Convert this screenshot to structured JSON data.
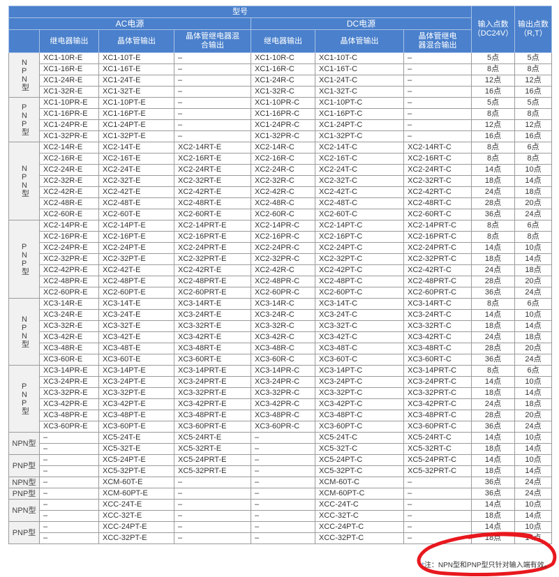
{
  "header": {
    "model": "型号",
    "ac_power": "AC电源",
    "dc_power": "DC电源",
    "input_points": "输入点数（DC24V）",
    "output_points": "输出点数（R,T）",
    "columns": [
      "继电器输出",
      "晶体管输出",
      "晶体管继电器混合输出",
      "继电器输出",
      "晶体管输出",
      "晶体管继电器混合输出"
    ]
  },
  "groups": [
    {
      "label": "NPN型",
      "vertical": true,
      "rows": [
        [
          "XC1-10R-E",
          "XC1-10T-E",
          "–",
          "XC1-10R-C",
          "XC1-10T-C",
          "–",
          "5点",
          "5点"
        ],
        [
          "XC1-16R-E",
          "XC1-16T-E",
          "–",
          "XC1-16R-C",
          "XC1-16T-C",
          "–",
          "8点",
          "8点"
        ],
        [
          "XC1-24R-E",
          "XC1-24T-E",
          "–",
          "XC1-24R-C",
          "XC1-24T-C",
          "–",
          "12点",
          "12点"
        ],
        [
          "XC1-32R-E",
          "XC1-32T-E",
          "–",
          "XC1-32R-C",
          "XC1-32T-C",
          "–",
          "16点",
          "16点"
        ]
      ]
    },
    {
      "label": "PNP型",
      "vertical": true,
      "rows": [
        [
          "XC1-10PR-E",
          "XC1-10PT-E",
          "–",
          "XC1-10PR-C",
          "XC1-10PT-C",
          "–",
          "5点",
          "5点"
        ],
        [
          "XC1-16PR-E",
          "XC1-16PT-E",
          "–",
          "XC1-16PR-C",
          "XC1-16PT-C",
          "–",
          "8点",
          "8点"
        ],
        [
          "XC1-24PR-E",
          "XC1-24PT-E",
          "–",
          "XC1-24PR-C",
          "XC1-24PT-C",
          "–",
          "12点",
          "12点"
        ],
        [
          "XC1-32PR-E",
          "XC1-32PT-E",
          "–",
          "XC1-32PR-C",
          "XC1-32PT-C",
          "–",
          "16点",
          "16点"
        ]
      ]
    },
    {
      "label": "NPN型",
      "vertical": true,
      "rows": [
        [
          "XC2-14R-E",
          "XC2-14T-E",
          "XC2-14RT-E",
          "XC2-14R-C",
          "XC2-14T-C",
          "XC2-14RT-C",
          "8点",
          "6点"
        ],
        [
          "XC2-16R-E",
          "XC2-16T-E",
          "XC2-16RT-E",
          "XC2-16R-C",
          "XC2-16T-C",
          "XC2-16RT-C",
          "8点",
          "8点"
        ],
        [
          "XC2-24R-E",
          "XC2-24T-E",
          "XC2-24RT-E",
          "XC2-24R-C",
          "XC2-24T-C",
          "XC2-24RT-C",
          "14点",
          "10点"
        ],
        [
          "XC2-32R-E",
          "XC2-32T-E",
          "XC2-32RT-E",
          "XC2-32R-C",
          "XC2-32T-C",
          "XC2-32RT-C",
          "18点",
          "14点"
        ],
        [
          "XC2-42R-E",
          "XC2-42T-E",
          "XC2-42RT-E",
          "XC2-42R-C",
          "XC2-42T-C",
          "XC2-42RT-C",
          "24点",
          "18点"
        ],
        [
          "XC2-48R-E",
          "XC2-48T-E",
          "XC2-48RT-E",
          "XC2-48R-C",
          "XC2-48T-C",
          "XC2-48RT-C",
          "28点",
          "20点"
        ],
        [
          "XC2-60R-E",
          "XC2-60T-E",
          "XC2-60RT-E",
          "XC2-60R-C",
          "XC2-60T-C",
          "XC2-60RT-C",
          "36点",
          "24点"
        ]
      ]
    },
    {
      "label": "PNP型",
      "vertical": true,
      "rows": [
        [
          "XC2-14PR-E",
          "XC2-14PT-E",
          "XC2-14PRT-E",
          "XC2-14PR-C",
          "XC2-14PT-C",
          "XC2-14PRT-C",
          "8点",
          "6点"
        ],
        [
          "XC2-16PR-E",
          "XC2-16PT-E",
          "XC2-16PRT-E",
          "XC2-16PR-C",
          "XC2-16PT-C",
          "XC2-16PRT-C",
          "8点",
          "8点"
        ],
        [
          "XC2-24PR-E",
          "XC2-24PT-E",
          "XC2-24PRT-E",
          "XC2-24PR-C",
          "XC2-24PT-C",
          "XC2-24PRT-C",
          "14点",
          "10点"
        ],
        [
          "XC2-32PR-E",
          "XC2-32PT-E",
          "XC2-32PRT-E",
          "XC2-32PR-C",
          "XC2-32PT-C",
          "XC2-32PRT-C",
          "18点",
          "14点"
        ],
        [
          "XC2-42PR-E",
          "XC2-42T-E",
          "XC2-42RT-E",
          "XC2-42R-C",
          "XC2-42PT-C",
          "XC2-42RT-C",
          "24点",
          "18点"
        ],
        [
          "XC2-48PR-E",
          "XC2-48PT-E",
          "XC2-48PRT-E",
          "XC2-48PR-C",
          "XC2-48PT-C",
          "XC2-48PRT-C",
          "28点",
          "20点"
        ],
        [
          "XC2-60PR-E",
          "XC2-60PT-E",
          "XC2-60PRT-E",
          "XC2-60PR-C",
          "XC2-60PT-C",
          "XC2-60PRT-C",
          "36点",
          "24点"
        ]
      ]
    },
    {
      "label": "NPN型",
      "vertical": true,
      "rows": [
        [
          "XC3-14R-E",
          "XC3-14T-E",
          "XC3-14RT-E",
          "XC3-14R-C",
          "XC3-14T-C",
          "XC3-14RT-C",
          "8点",
          "6点"
        ],
        [
          "XC3-24R-E",
          "XC3-24T-E",
          "XC3-24RT-E",
          "XC3-24R-C",
          "XC3-24T-C",
          "XC3-24RT-C",
          "14点",
          "10点"
        ],
        [
          "XC3-32R-E",
          "XC3-32T-E",
          "XC3-32RT-E",
          "XC3-32R-C",
          "XC3-32T-C",
          "XC3-32RT-C",
          "18点",
          "14点"
        ],
        [
          "XC3-42R-E",
          "XC3-42T-E",
          "XC3-42RT-E",
          "XC3-42R-C",
          "XC3-42T-C",
          "XC3-42RT-C",
          "24点",
          "18点"
        ],
        [
          "XC3-48R-E",
          "XC3-48T-E",
          "XC3-48RT-E",
          "XC3-48R-C",
          "XC3-48T-C",
          "XC3-48RT-C",
          "28点",
          "20点"
        ],
        [
          "XC3-60R-E",
          "XC3-60T-E",
          "XC3-60RT-E",
          "XC3-60R-C",
          "XC3-60T-C",
          "XC3-60RT-C",
          "36点",
          "24点"
        ]
      ]
    },
    {
      "label": "PNP型",
      "vertical": true,
      "rows": [
        [
          "XC3-14PR-E",
          "XC3-14PT-E",
          "XC3-14PRT-E",
          "XC3-14PR-C",
          "XC3-14PT-C",
          "XC3-14PRT-C",
          "8点",
          "6点"
        ],
        [
          "XC3-24PR-E",
          "XC3-24PT-E",
          "XC3-24PRT-E",
          "XC3-24PR-C",
          "XC3-24PT-C",
          "XC3-24PRT-C",
          "14点",
          "10点"
        ],
        [
          "XC3-32PR-E",
          "XC3-32PT-E",
          "XC3-32PRT-E",
          "XC3-32PR-C",
          "XC3-32PT-C",
          "XC3-32PRT-C",
          "18点",
          "14点"
        ],
        [
          "XC3-42PR-E",
          "XC3-42PT-E",
          "XC3-42PRT-E",
          "XC3-42PR-C",
          "XC3-42PT-C",
          "XC3-42PRT-C",
          "24点",
          "18点"
        ],
        [
          "XC3-48PR-E",
          "XC3-48PT-E",
          "XC3-48PRT-E",
          "XC3-48PR-C",
          "XC3-48PT-C",
          "XC3-48PRT-C",
          "28点",
          "20点"
        ],
        [
          "XC3-60PR-E",
          "XC3-60PT-E",
          "XC3-60PRT-E",
          "XC3-60PR-C",
          "XC3-60PT-C",
          "XC3-60PRT-C",
          "36点",
          "24点"
        ]
      ]
    },
    {
      "label": "NPN型",
      "vertical": false,
      "rows": [
        [
          "–",
          "XC5-24T-E",
          "XC5-24RT-E",
          "–",
          "XC5-24T-C",
          "XC5-24RT-C",
          "14点",
          "10点"
        ],
        [
          "–",
          "XC5-32T-E",
          "XC5-32RT-E",
          "–",
          "XC5-32T-C",
          "XC5-32RT-C",
          "18点",
          "14点"
        ]
      ]
    },
    {
      "label": "PNP型",
      "vertical": false,
      "rows": [
        [
          "–",
          "XC5-24PT-E",
          "XC5-24PRT-E",
          "–",
          "XC5-24PT-C",
          "XC5-24PRT-C",
          "14点",
          "10点"
        ],
        [
          "–",
          "XC5-32PT-E",
          "XC5-32PRT-E",
          "–",
          "XC5-32PT-C",
          "XC5-32PRT-C",
          "18点",
          "14点"
        ]
      ]
    },
    {
      "label": "NPN型",
      "vertical": false,
      "rows": [
        [
          "–",
          "XCM-60T-E",
          "–",
          "–",
          "XCM-60T-C",
          "–",
          "36点",
          "24点"
        ]
      ]
    },
    {
      "label": "PNP型",
      "vertical": false,
      "rows": [
        [
          "–",
          "XCM-60PT-E",
          "–",
          "–",
          "XCM-60PT-C",
          "–",
          "36点",
          "24点"
        ]
      ]
    },
    {
      "label": "NPN型",
      "vertical": false,
      "rows": [
        [
          "–",
          "XCC-24T-E",
          "–",
          "–",
          "XCC-24T-C",
          "–",
          "14点",
          "10点"
        ],
        [
          "–",
          "XCC-32T-E",
          "–",
          "–",
          "XCC-32T-C",
          "–",
          "18点",
          "14点"
        ]
      ]
    },
    {
      "label": "PNP型",
      "vertical": false,
      "rows": [
        [
          "–",
          "XCC-24PT-E",
          "–",
          "–",
          "XCC-24PT-C",
          "–",
          "14点",
          "10点"
        ],
        [
          "–",
          "XCC-32PT-E",
          "–",
          "–",
          "XCC-32PT-C",
          "–",
          "18点",
          "14点"
        ]
      ]
    }
  ],
  "note": {
    "star": "*",
    "text": "注：NPN型和PNP型只针对输入端有效。"
  },
  "annotation_color": "#e8181e",
  "header_color": "#4a80cc"
}
